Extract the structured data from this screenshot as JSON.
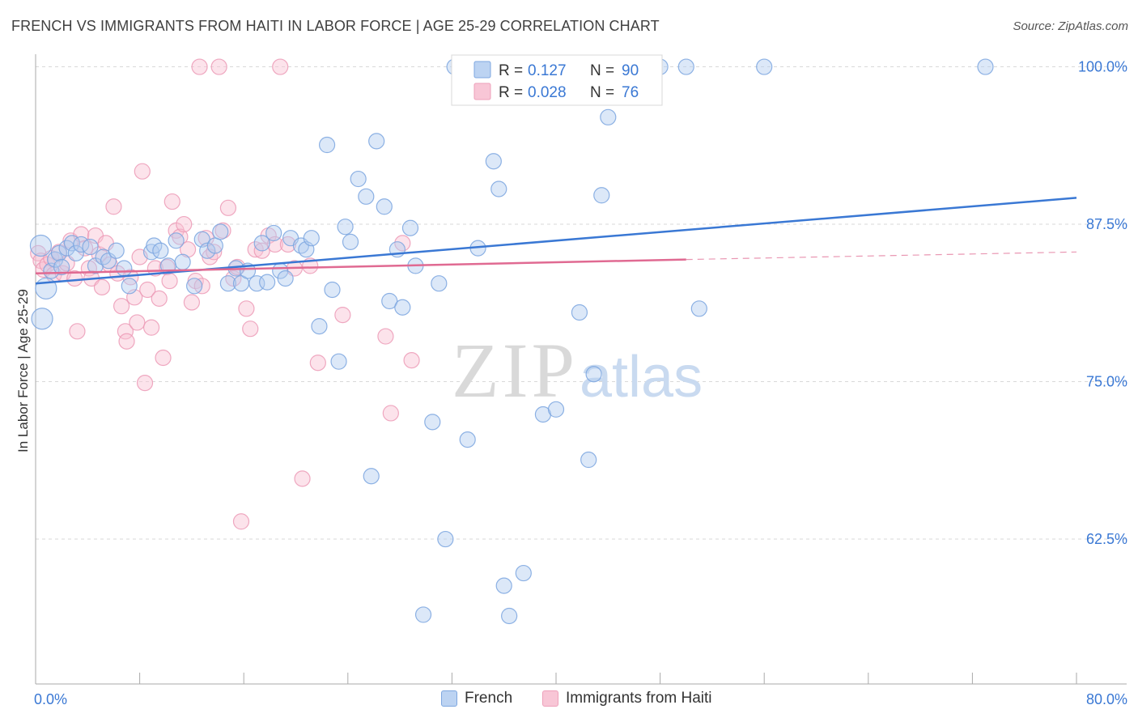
{
  "header": {
    "title": "FRENCH VS IMMIGRANTS FROM HAITI IN LABOR FORCE | AGE 25-29 CORRELATION CHART",
    "source": "Source: ZipAtlas.com"
  },
  "watermark": {
    "zip": "ZIP",
    "atlas": "atlas"
  },
  "legend_stats": [
    {
      "r_label": "R =",
      "r_value": "0.127",
      "n_label": "N =",
      "n_value": "90"
    },
    {
      "r_label": "R =",
      "r_value": "0.028",
      "n_label": "N =",
      "n_value": "76"
    }
  ],
  "chart_data": {
    "type": "scatter",
    "title": "FRENCH VS IMMIGRANTS FROM HAITI IN LABOR FORCE | AGE 25-29 CORRELATION CHART",
    "xlabel": "",
    "ylabel": "In Labor Force | Age 25-29",
    "xlim": [
      0,
      80
    ],
    "ylim": [
      51,
      101
    ],
    "x_tick_labels": [
      "0.0%",
      "80.0%"
    ],
    "y_ticks": [
      62.5,
      75.0,
      87.5,
      100.0
    ],
    "y_tick_labels": [
      "62.5%",
      "75.0%",
      "87.5%",
      "100.0%"
    ],
    "grid": "horizontal dashed",
    "legend_position": "bottom",
    "series": [
      {
        "name": "French",
        "color": "#6f9ee0",
        "line_color": "#3a78d4",
        "trend": {
          "x": [
            0,
            80
          ],
          "y": [
            82.8,
            89.6
          ]
        },
        "points": [
          [
            0.4,
            85.8
          ],
          [
            0.5,
            80.0
          ],
          [
            0.8,
            82.4
          ],
          [
            1.2,
            83.8
          ],
          [
            1.5,
            84.7
          ],
          [
            1.8,
            85.2
          ],
          [
            2.0,
            84.1
          ],
          [
            2.4,
            85.6
          ],
          [
            2.8,
            86.0
          ],
          [
            3.1,
            85.2
          ],
          [
            3.5,
            85.9
          ],
          [
            4.2,
            85.7
          ],
          [
            4.6,
            84.2
          ],
          [
            5.2,
            84.9
          ],
          [
            5.6,
            84.6
          ],
          [
            6.2,
            85.4
          ],
          [
            6.8,
            84.0
          ],
          [
            7.2,
            82.6
          ],
          [
            8.9,
            85.3
          ],
          [
            9.1,
            85.8
          ],
          [
            9.6,
            85.4
          ],
          [
            10.2,
            84.2
          ],
          [
            10.8,
            86.2
          ],
          [
            11.3,
            84.5
          ],
          [
            12.2,
            82.6
          ],
          [
            12.8,
            86.3
          ],
          [
            13.2,
            85.4
          ],
          [
            13.8,
            85.8
          ],
          [
            14.2,
            86.9
          ],
          [
            14.8,
            82.8
          ],
          [
            15.4,
            84.0
          ],
          [
            15.8,
            82.8
          ],
          [
            16.3,
            83.8
          ],
          [
            17.0,
            82.8
          ],
          [
            17.4,
            86.0
          ],
          [
            17.8,
            82.9
          ],
          [
            18.3,
            86.8
          ],
          [
            18.8,
            83.8
          ],
          [
            19.2,
            83.2
          ],
          [
            19.6,
            86.4
          ],
          [
            20.4,
            85.8
          ],
          [
            20.8,
            85.5
          ],
          [
            21.2,
            86.4
          ],
          [
            21.8,
            79.4
          ],
          [
            22.4,
            93.8
          ],
          [
            22.8,
            82.3
          ],
          [
            23.3,
            76.6
          ],
          [
            23.8,
            87.3
          ],
          [
            24.2,
            86.1
          ],
          [
            24.8,
            91.1
          ],
          [
            25.4,
            89.7
          ],
          [
            25.8,
            67.5
          ],
          [
            26.2,
            94.1
          ],
          [
            26.8,
            88.9
          ],
          [
            27.2,
            81.4
          ],
          [
            27.8,
            85.5
          ],
          [
            28.2,
            80.9
          ],
          [
            28.8,
            87.2
          ],
          [
            29.2,
            84.2
          ],
          [
            29.8,
            56.5
          ],
          [
            30.5,
            71.8
          ],
          [
            31.0,
            82.8
          ],
          [
            31.5,
            62.5
          ],
          [
            32.2,
            100.0
          ],
          [
            33.2,
            70.4
          ],
          [
            34.0,
            85.6
          ],
          [
            34.5,
            100.0
          ],
          [
            35.2,
            92.5
          ],
          [
            35.6,
            90.3
          ],
          [
            36.0,
            58.8
          ],
          [
            36.4,
            56.4
          ],
          [
            37.5,
            59.8
          ],
          [
            38.2,
            100.0
          ],
          [
            39.0,
            72.4
          ],
          [
            40.0,
            72.8
          ],
          [
            41.0,
            100.0
          ],
          [
            41.8,
            80.5
          ],
          [
            42.5,
            68.8
          ],
          [
            42.9,
            75.6
          ],
          [
            43.5,
            89.8
          ],
          [
            44.0,
            96.0
          ],
          [
            45.4,
            100.0
          ],
          [
            46.5,
            100.0
          ],
          [
            48.0,
            100.0
          ],
          [
            50.0,
            100.0
          ],
          [
            51.0,
            80.8
          ],
          [
            56.0,
            100.0
          ],
          [
            73.0,
            100.0
          ]
        ]
      },
      {
        "name": "Immigrants from Haiti",
        "color": "#f2a2bc",
        "line_color": "#e06a92",
        "trend": {
          "x": [
            0,
            50
          ],
          "y": [
            83.6,
            84.7
          ]
        },
        "trend_dashed": {
          "x": [
            50,
            80
          ],
          "y": [
            84.7,
            85.3
          ]
        },
        "points": [
          [
            0.2,
            85.2
          ],
          [
            0.4,
            84.6
          ],
          [
            0.6,
            83.9
          ],
          [
            0.9,
            84.3
          ],
          [
            1.2,
            84.8
          ],
          [
            1.4,
            83.5
          ],
          [
            1.8,
            85.3
          ],
          [
            2.1,
            83.6
          ],
          [
            2.4,
            84.4
          ],
          [
            2.7,
            86.2
          ],
          [
            3.0,
            83.2
          ],
          [
            3.2,
            79.0
          ],
          [
            3.5,
            86.7
          ],
          [
            3.8,
            85.6
          ],
          [
            4.1,
            84.0
          ],
          [
            4.3,
            83.2
          ],
          [
            4.6,
            86.6
          ],
          [
            4.9,
            85.1
          ],
          [
            5.1,
            82.5
          ],
          [
            5.4,
            86.0
          ],
          [
            5.7,
            84.3
          ],
          [
            6.0,
            88.9
          ],
          [
            6.3,
            83.6
          ],
          [
            6.6,
            81.0
          ],
          [
            6.9,
            79.0
          ],
          [
            7.0,
            78.2
          ],
          [
            7.3,
            83.3
          ],
          [
            7.6,
            81.7
          ],
          [
            7.8,
            79.7
          ],
          [
            8.0,
            84.9
          ],
          [
            8.2,
            91.7
          ],
          [
            8.4,
            74.9
          ],
          [
            8.6,
            82.3
          ],
          [
            8.9,
            79.3
          ],
          [
            9.2,
            84.0
          ],
          [
            9.5,
            81.6
          ],
          [
            9.8,
            76.9
          ],
          [
            10.1,
            84.1
          ],
          [
            10.3,
            83.0
          ],
          [
            10.5,
            89.3
          ],
          [
            10.8,
            87.0
          ],
          [
            11.1,
            86.5
          ],
          [
            11.4,
            87.5
          ],
          [
            11.7,
            85.5
          ],
          [
            12.0,
            81.3
          ],
          [
            12.3,
            83.0
          ],
          [
            12.6,
            100.0
          ],
          [
            12.8,
            82.6
          ],
          [
            13.1,
            86.4
          ],
          [
            13.4,
            84.9
          ],
          [
            13.7,
            85.3
          ],
          [
            14.1,
            100.0
          ],
          [
            14.4,
            87.0
          ],
          [
            14.8,
            88.8
          ],
          [
            15.2,
            83.2
          ],
          [
            15.5,
            84.1
          ],
          [
            15.8,
            63.9
          ],
          [
            16.2,
            80.8
          ],
          [
            16.5,
            79.2
          ],
          [
            16.9,
            85.5
          ],
          [
            17.4,
            85.4
          ],
          [
            17.9,
            86.6
          ],
          [
            18.4,
            85.9
          ],
          [
            18.8,
            100.0
          ],
          [
            19.4,
            85.9
          ],
          [
            19.9,
            84.0
          ],
          [
            20.5,
            67.3
          ],
          [
            21.1,
            84.2
          ],
          [
            21.7,
            76.5
          ],
          [
            23.6,
            80.3
          ],
          [
            26.9,
            78.6
          ],
          [
            27.3,
            72.5
          ],
          [
            28.2,
            86.0
          ],
          [
            28.9,
            76.7
          ],
          [
            44.5,
            100.0
          ],
          [
            45.0,
            100.0
          ]
        ]
      }
    ]
  }
}
